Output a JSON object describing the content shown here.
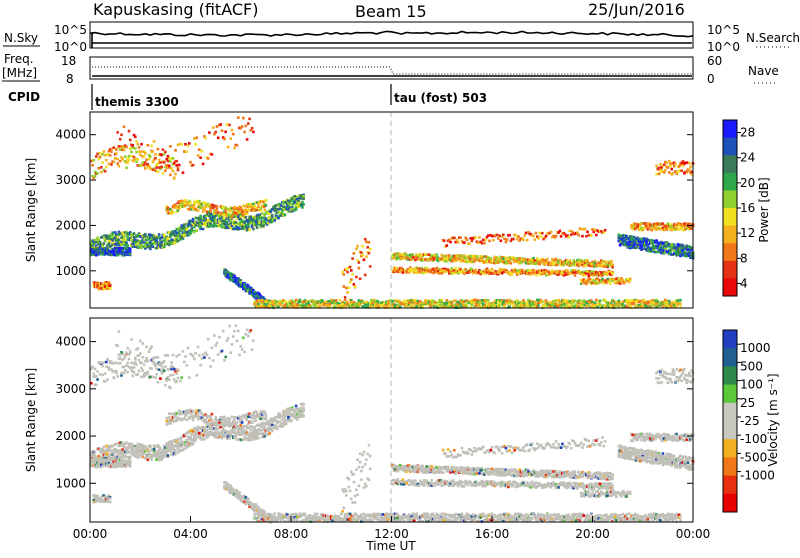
{
  "header": {
    "title": "Kapuskasing (fitACF)",
    "beam": "Beam 15",
    "date": "25/Jun/2016"
  },
  "nsky_panel": {
    "left_label": "N.Sky",
    "left_ticks": [
      "10^5",
      "10^0"
    ],
    "right_ticks": [
      "10^5",
      "10^0"
    ],
    "right_label": "N.Search"
  },
  "freq_panel": {
    "left_label_1": "Freq.",
    "left_label_2": "[MHz]",
    "left_ticks": [
      "18",
      "8"
    ],
    "right_ticks": [
      "60",
      "0"
    ],
    "right_label": "Nave"
  },
  "cpid_panel": {
    "label": "CPID",
    "modes": [
      {
        "name": "themis 3300",
        "start_hour": 0
      },
      {
        "name": "tau (fost) 503",
        "start_hour": 12
      }
    ]
  },
  "chart_data": [
    {
      "type": "heatmap",
      "quantity": "Power",
      "ylabel": "Slant Range [km]",
      "ylim": [
        180,
        4500
      ],
      "yticks": [
        1000,
        2000,
        3000,
        4000
      ],
      "xlim": [
        "00:00",
        "24:00"
      ],
      "colorbar": {
        "label": "Power [dB]",
        "ticks": [
          "4",
          "8",
          "12",
          "16",
          "20",
          "24",
          "28"
        ],
        "colors": [
          "#1a1aff",
          "#1f52b8",
          "#3a7a5a",
          "#2ea84a",
          "#8fcf2f",
          "#f0e020",
          "#f5b020",
          "#f07818",
          "#e63214",
          "#e80808"
        ]
      },
      "features": [
        {
          "t_start": 0.0,
          "t_end": 8.5,
          "range_km": 1450,
          "power_db": 24,
          "note": "band near 1500 km"
        },
        {
          "t_start": 3.0,
          "t_end": 6.5,
          "range_km": 2300,
          "power_db": 14
        },
        {
          "t_start": 5.5,
          "t_end": 7.2,
          "range_km": 600,
          "power_db": 26
        },
        {
          "t_start": 6.5,
          "t_end": 23.5,
          "range_km": 320,
          "power_db": 12,
          "note": "near-range scatter"
        },
        {
          "t_start": 12.0,
          "t_end": 20.5,
          "range_km": 1250,
          "power_db": 10
        },
        {
          "t_start": 21.0,
          "t_end": 24.0,
          "range_km": 1600,
          "power_db": 26
        }
      ]
    },
    {
      "type": "heatmap",
      "quantity": "Velocity",
      "ylabel": "Slant Range [km]",
      "ylim": [
        180,
        4500
      ],
      "yticks": [
        1000,
        2000,
        3000,
        4000
      ],
      "xlim": [
        "00:00",
        "24:00"
      ],
      "xlabel": "Time UT",
      "xticks": [
        "00:00",
        "04:00",
        "08:00",
        "12:00",
        "16:00",
        "20:00",
        "00:00"
      ],
      "colorbar": {
        "label": "Velocity [m s⁻¹]",
        "ticks": [
          "1000",
          "500",
          "100",
          "25",
          "-25",
          "-100",
          "-500",
          "-1000"
        ],
        "colors": [
          "#2040c0",
          "#206090",
          "#2e8a4a",
          "#5ac83a",
          "#c8c8c0",
          "#c8c8c0",
          "#f0b020",
          "#f07818",
          "#e83010",
          "#e80000"
        ]
      },
      "note": "most echoes grey (ground scatter, |v| < 25 m/s)"
    }
  ],
  "colors": {
    "ground_scatter": "#c0c0b8",
    "marker_line": "#b4b4b4"
  }
}
